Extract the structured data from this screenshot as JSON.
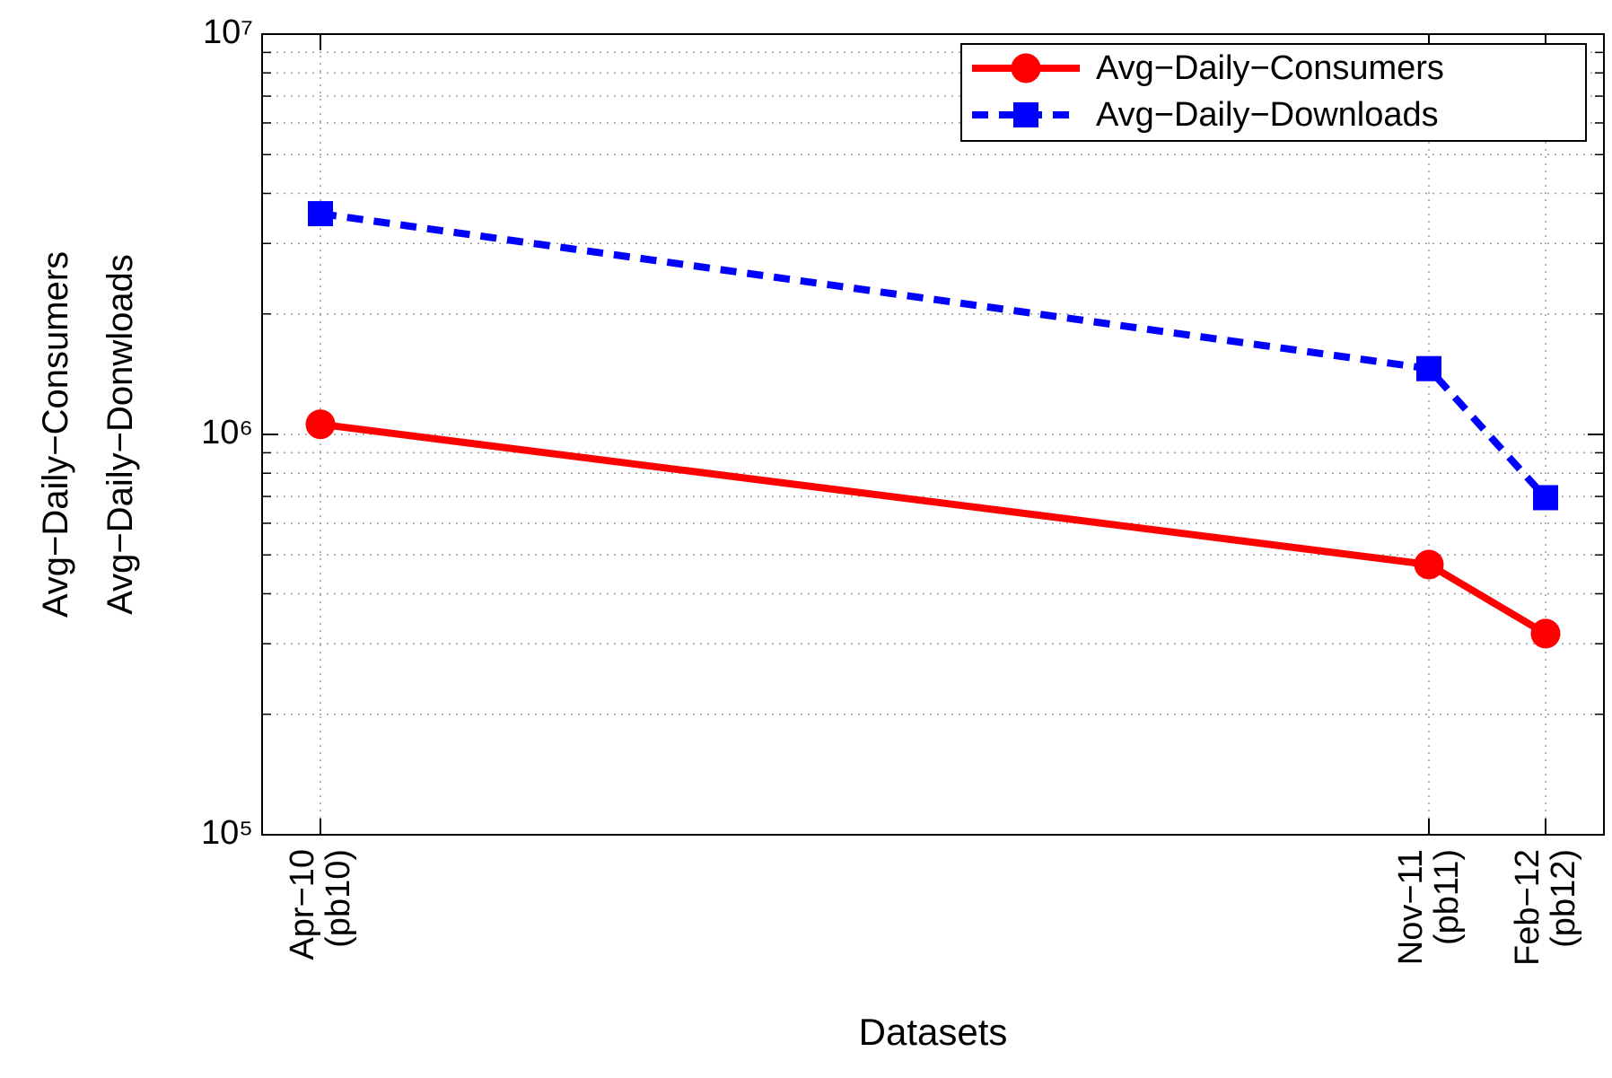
{
  "chart_data": {
    "type": "line",
    "xlabel": "Datasets",
    "ylabel": [
      "Avg−Daily−Consumers",
      "Avg−Daily−Donwloads"
    ],
    "x": [
      1,
      20,
      22
    ],
    "xlim": [
      0,
      23
    ],
    "xticks": [
      {
        "value": 1,
        "label": "Apr−10\n(pb10)"
      },
      {
        "value": 20,
        "label": "Nov−11\n(pb11)"
      },
      {
        "value": 22,
        "label": "Feb−12\n(pb12)"
      }
    ],
    "ylim": [
      100000,
      10000000
    ],
    "yticks": [
      {
        "value": 100000,
        "label": "10⁵"
      },
      {
        "value": 1000000,
        "label": "10⁶"
      },
      {
        "value": 10000000,
        "label": "10⁷"
      }
    ],
    "log_y": true,
    "grid": true,
    "minor_grid": true,
    "legend": "upper right",
    "series": [
      {
        "name": "Avg−Daily−Consumers",
        "color": "#ff0000",
        "dash": false,
        "marker": "circle",
        "values": [
          1060000,
          473000,
          318000
        ]
      },
      {
        "name": "Avg−Daily−Downloads",
        "color": "#0000ff",
        "dash": true,
        "marker": "square",
        "values": [
          3560000,
          1460000,
          695000
        ]
      }
    ]
  }
}
